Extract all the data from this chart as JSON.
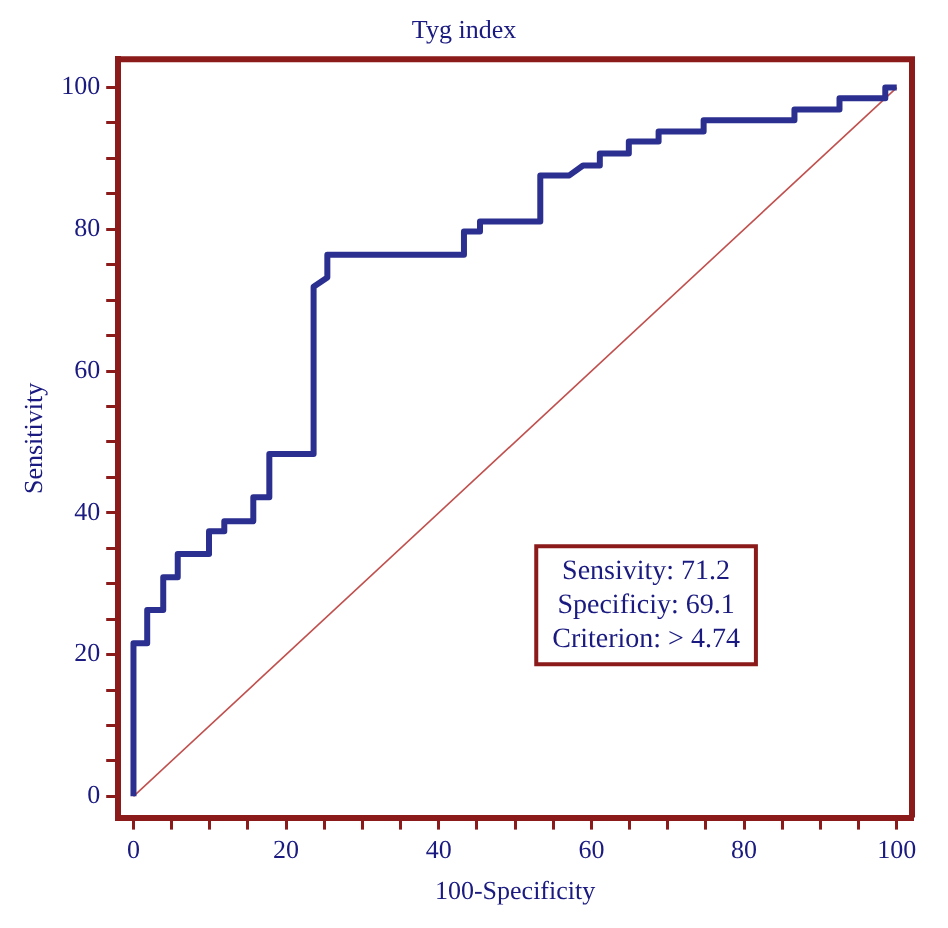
{
  "chart_data": {
    "type": "line",
    "title": "Tyg index",
    "xlabel": "100-Specificity",
    "ylabel": "Sensitivity",
    "series": [
      {
        "color": "#2b2f8f",
        "x": [
          0,
          0,
          1.8,
          1.8,
          3.9,
          3.9,
          5.8,
          5.8,
          9.9,
          9.9,
          11.9,
          11.9,
          15.7,
          15.7,
          17.8,
          17.8,
          23.6,
          23.6,
          25.4,
          25.4,
          43.3,
          43.3,
          45.4,
          45.4,
          53.3,
          53.3,
          57.1,
          58.9,
          61.1,
          61.1,
          64.9,
          64.9,
          68.8,
          68.8,
          74.7,
          74.7,
          86.6,
          86.6,
          92.5,
          92.5,
          98.5,
          98.5,
          100
        ],
        "values": [
          0,
          21.6,
          21.6,
          26.3,
          26.3,
          30.9,
          30.9,
          34.2,
          34.2,
          37.4,
          37.4,
          38.8,
          38.8,
          42.2,
          42.2,
          48.3,
          48.3,
          71.9,
          73.2,
          76.4,
          76.4,
          79.7,
          79.7,
          81.1,
          81.1,
          87.6,
          87.6,
          89.0,
          89.0,
          90.7,
          90.7,
          92.4,
          92.4,
          93.8,
          93.8,
          95.4,
          95.4,
          96.9,
          96.9,
          98.5,
          98.5,
          100,
          100
        ]
      },
      {
        "color": "#c0504d",
        "x": [
          0,
          100
        ],
        "values": [
          0,
          100
        ]
      }
    ],
    "xlim": [
      -2,
      102
    ],
    "ylim": [
      -3,
      104
    ],
    "xticks": [
      0,
      {
        "value": 5,
        "label": null
      },
      {
        "value": 10,
        "label": null
      },
      {
        "value": 15,
        "label": null
      },
      20,
      {
        "value": 25,
        "label": null
      },
      {
        "value": 30,
        "label": null
      },
      {
        "value": 35,
        "label": null
      },
      40,
      {
        "value": 45,
        "label": null
      },
      {
        "value": 50,
        "label": null
      },
      {
        "value": 55,
        "label": null
      },
      60,
      {
        "value": 65,
        "label": null
      },
      {
        "value": 70,
        "label": null
      },
      {
        "value": 75,
        "label": null
      },
      80,
      {
        "value": 85,
        "label": null
      },
      {
        "value": 90,
        "label": null
      },
      {
        "value": 95,
        "label": null
      },
      100
    ],
    "yticks": [
      0,
      {
        "value": 5,
        "label": null
      },
      {
        "value": 10,
        "label": null
      },
      {
        "value": 15,
        "label": null
      },
      20,
      {
        "value": 25,
        "label": null
      },
      {
        "value": 30,
        "label": null
      },
      {
        "value": 35,
        "label": null
      },
      40,
      {
        "value": 45,
        "label": null
      },
      {
        "value": 50,
        "label": null
      },
      {
        "value": 55,
        "label": null
      },
      60,
      {
        "value": 65,
        "label": null
      },
      {
        "value": 70,
        "label": null
      },
      {
        "value": 75,
        "label": null
      },
      80,
      {
        "value": 85,
        "label": null
      },
      {
        "value": 90,
        "label": null
      },
      {
        "value": 95,
        "label": null
      },
      100
    ],
    "annotations": [
      "Sensivity: 71.2",
      "Specificiy: 69.1",
      "Criterion: > 4.74"
    ],
    "grid": false,
    "legend": false,
    "marker": "none",
    "line_style": "solid"
  }
}
